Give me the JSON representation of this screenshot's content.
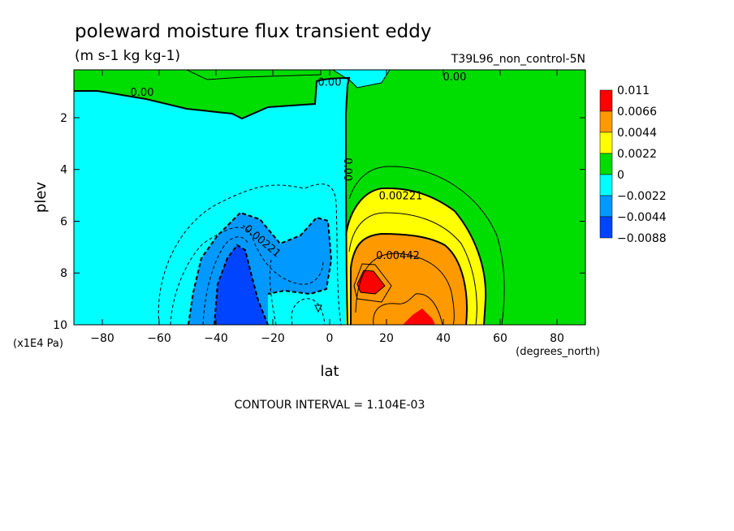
{
  "chart_data": {
    "type": "contour",
    "title": "poleward moisture flux transient eddy",
    "units": "(m s-1 kg kg-1)",
    "dataset": "T39L96_non_control-5N",
    "xlabel": "lat",
    "x_units": "(degrees_north)",
    "ylabel": "plev",
    "y_units": "(x1E4 Pa)",
    "xlim": [
      -90,
      90
    ],
    "ylim": [
      10,
      0.15
    ],
    "x_ticks": [
      -80,
      -60,
      -40,
      -20,
      0,
      20,
      40,
      60,
      80
    ],
    "y_ticks": [
      2,
      4,
      6,
      8,
      10
    ],
    "footer": "CONTOUR INTERVAL = 1.104E-03",
    "contour_labels": [
      {
        "text": "0.00",
        "lat": -66,
        "plev": 1.0
      },
      {
        "text": "0.00",
        "lat": 0,
        "plev": 0.6
      },
      {
        "text": "0.00",
        "lat": 44,
        "plev": 0.4
      },
      {
        "text": "0.00",
        "lat": 6.5,
        "plev": 4.0
      },
      {
        "text": "0.00221",
        "lat": 25,
        "plev": 5.0
      },
      {
        "text": "0.00442",
        "lat": 24,
        "plev": 7.3
      },
      {
        "text": "-0.00221",
        "lat": -24,
        "plev": 6.7
      }
    ],
    "legend": {
      "labels": [
        "0.011",
        "0.0066",
        "0.0044",
        "0.0022",
        "0",
        "−0.0022",
        "−0.0044",
        "−0.0088"
      ],
      "colors": [
        "#ff0000",
        "#ff9900",
        "#ffff00",
        "#00dd00",
        "#00ffff",
        "#0099ff",
        "#0044ff"
      ]
    },
    "regions": [
      {
        "level": "0 to 0.0022",
        "color": "#00dd00",
        "description": "upper stratosphere band and Northern Hemisphere east of ~5N"
      },
      {
        "level": "-0.0022 to 0",
        "color": "#00ffff",
        "description": "Southern Hemisphere and tropical upper levels"
      },
      {
        "level": "-0.0044 to -0.0022",
        "color": "#0099ff",
        "description": "southern midlatitude lower troposphere, -50 to -10"
      },
      {
        "level": "< -0.0044",
        "color": "#0044ff",
        "description": "core near -30, 8-10 x1E4 Pa"
      },
      {
        "level": "0.0022 to 0.0044",
        "color": "#ffff00",
        "description": "northern lower troposphere, 5 to 50"
      },
      {
        "level": "0.0044 to 0.0066",
        "color": "#ff9900",
        "description": "northern core region 10 to 45"
      },
      {
        "level": "> 0.0066",
        "color": "#ff0000",
        "description": "maxima near 12N, 8.6 and 33N, 10"
      }
    ]
  }
}
